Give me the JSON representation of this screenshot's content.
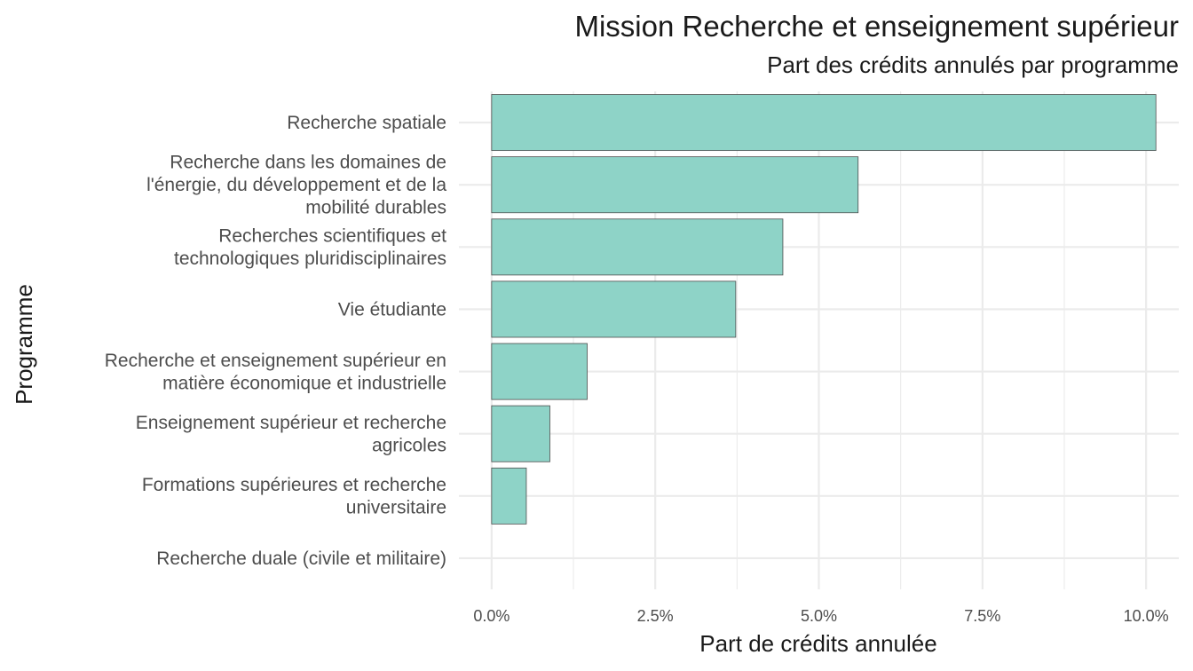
{
  "chart_data": {
    "type": "bar",
    "orientation": "horizontal",
    "title": "Mission Recherche et enseignement supérieur",
    "subtitle": "Part des crédits annulés par programme",
    "xlabel": "Part de crédits annulée",
    "ylabel": "Programme",
    "xlim": [
      -0.5,
      10.5
    ],
    "xticks": [
      0,
      2.5,
      5,
      7.5,
      10
    ],
    "xtick_labels": [
      "0.0%",
      "2.5%",
      "5.0%",
      "7.5%",
      "10.0%"
    ],
    "grid": true,
    "categories": [
      "Recherche spatiale",
      "Recherche dans les domaines de l'énergie, du développement et de la mobilité durables",
      "Recherches scientifiques et technologiques pluridisciplinaires",
      "Vie étudiante",
      "Recherche et enseignement supérieur en matière économique et industrielle",
      "Enseignement supérieur et recherche agricoles",
      "Formations supérieures et recherche universitaire",
      "Recherche duale (civile et militaire)"
    ],
    "category_label_lines": [
      [
        "Recherche spatiale"
      ],
      [
        "Recherche dans les domaines de",
        "l'énergie, du développement et de la",
        "mobilité durables"
      ],
      [
        "Recherches scientifiques et",
        "technologiques pluridisciplinaires"
      ],
      [
        "Vie étudiante"
      ],
      [
        "Recherche et enseignement supérieur en",
        "matière économique et industrielle"
      ],
      [
        "Enseignement supérieur et recherche",
        "agricoles"
      ],
      [
        "Formations supérieures et recherche",
        "universitaire"
      ],
      [
        "Recherche duale (civile et militaire)"
      ]
    ],
    "values": [
      10.15,
      5.6,
      4.45,
      3.73,
      1.46,
      0.89,
      0.53,
      0.0
    ],
    "unit": "%",
    "bar_color": "#8ed3c7",
    "bar_outline_color": "#4d4d4d"
  }
}
